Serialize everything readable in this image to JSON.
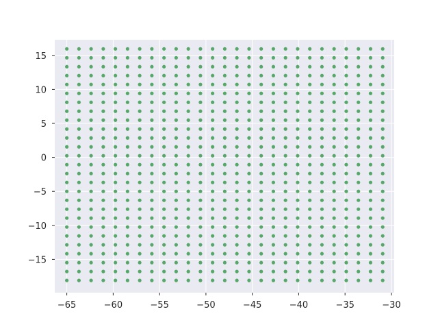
{
  "chart_data": {
    "type": "scatter",
    "title": "",
    "xlabel": "",
    "ylabel": "",
    "xlim": [
      -66.3,
      -29.7
    ],
    "ylim": [
      -19.9,
      17.3
    ],
    "x_ticks": [
      -65,
      -60,
      -55,
      -50,
      -45,
      -40,
      -35,
      -30
    ],
    "y_ticks": [
      -15,
      -10,
      -5,
      0,
      5,
      10,
      15
    ],
    "x_tick_labels": [
      "−65",
      "−60",
      "−55",
      "−50",
      "−45",
      "−40",
      "−35",
      "−30"
    ],
    "y_tick_labels": [
      "−15",
      "−10",
      "−5",
      "0",
      "5",
      "10",
      "15"
    ],
    "grid": true,
    "marker_color": "#55a868",
    "background_color": "#eaeaf2",
    "grid_color": "#ffffff",
    "series": [
      {
        "x_grid": {
          "start": -65.0,
          "step": 1.31,
          "count": 27
        },
        "y_grid": {
          "start": -18.1,
          "step": 1.31,
          "count": 27
        }
      }
    ]
  }
}
